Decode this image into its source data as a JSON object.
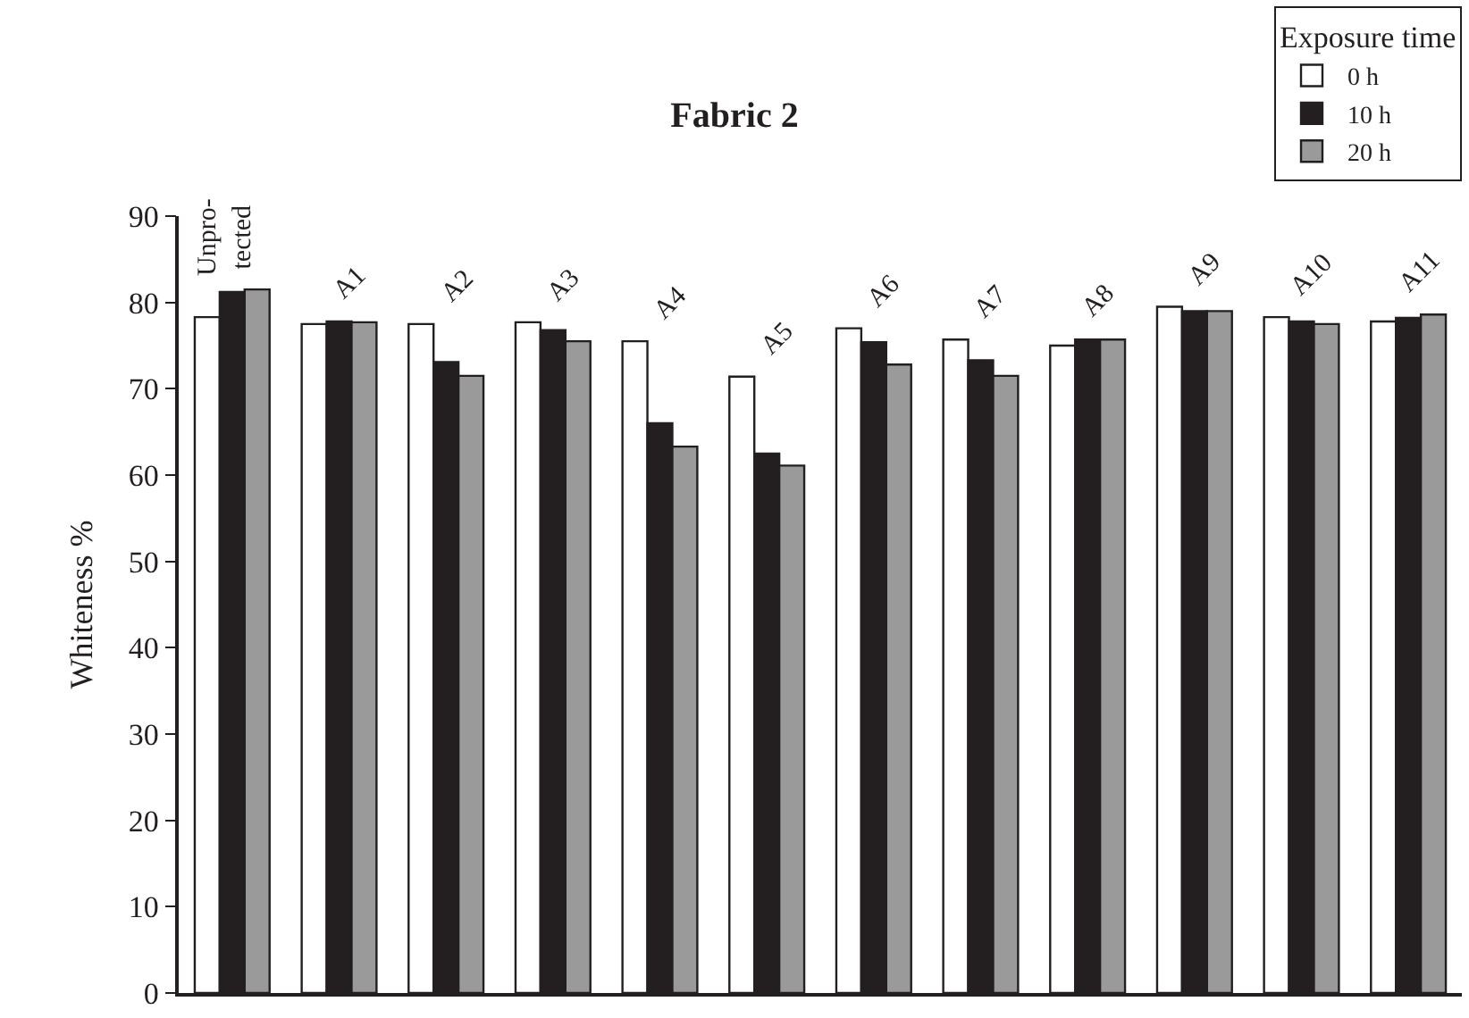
{
  "chart_data": {
    "type": "bar",
    "title": "Fabric 2",
    "ylabel": "Whiteness %",
    "legend_title": "Exposure time",
    "categories": [
      "Unpro-\ntected",
      "A1",
      "A2",
      "A3",
      "A4",
      "A5",
      "A6",
      "A7",
      "A8",
      "A9",
      "A10",
      "A11"
    ],
    "series": [
      {
        "name": "0 h",
        "color": "#ffffff",
        "values": [
          78.3,
          77.5,
          77.5,
          77.7,
          75.5,
          71.4,
          77.0,
          75.7,
          75.0,
          79.5,
          78.3,
          77.8
        ]
      },
      {
        "name": "10 h",
        "color": "#231f20",
        "values": [
          81.2,
          77.8,
          73.1,
          76.8,
          66.0,
          62.5,
          75.4,
          73.3,
          75.7,
          79.0,
          77.8,
          78.2
        ]
      },
      {
        "name": "20 h",
        "color": "#9a9a9a",
        "values": [
          81.5,
          77.7,
          71.5,
          75.5,
          63.3,
          61.1,
          72.8,
          71.5,
          75.7,
          79.0,
          77.5,
          78.6
        ]
      }
    ],
    "ylim": [
      0,
      90
    ],
    "yticks": [
      0,
      10,
      20,
      30,
      40,
      50,
      60,
      70,
      80,
      90
    ],
    "tick_labels": "y",
    "legend": "top right"
  }
}
